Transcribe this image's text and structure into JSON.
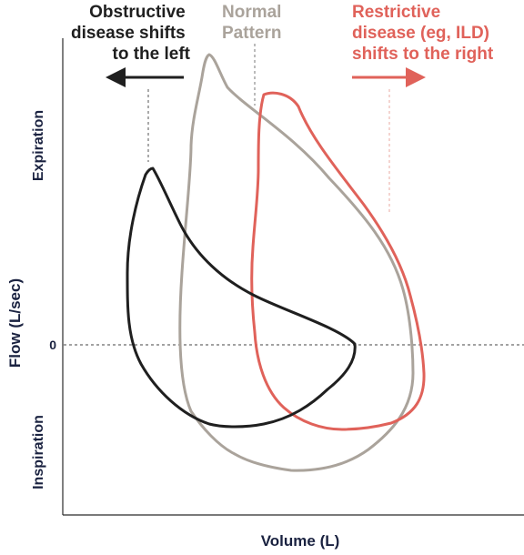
{
  "colors": {
    "obstructive": "#1f1f1f",
    "normal": "#aaa39b",
    "restrictive": "#e0625a",
    "axis": "#2b2b2b",
    "label": "#1a2240"
  },
  "annotations": {
    "obstructive": [
      "Obstructive",
      "disease shifts",
      "to the left"
    ],
    "normal": [
      "Normal",
      "Pattern"
    ],
    "restrictive": [
      "Restrictive",
      "disease (eg, ILD)",
      "shifts to the right"
    ]
  },
  "axes": {
    "x_label": "Volume (L)",
    "y_label": "Flow (L/sec)",
    "upper_label": "Expiration",
    "lower_label": "Inspiration",
    "zero_label": "0"
  },
  "curves": [
    {
      "key": "obstructive",
      "name": "Obstructive",
      "icon": "arrow-left-icon"
    },
    {
      "key": "normal",
      "name": "Normal",
      "icon": ""
    },
    {
      "key": "restrictive",
      "name": "Restrictive",
      "icon": "arrow-right-icon"
    }
  ]
}
